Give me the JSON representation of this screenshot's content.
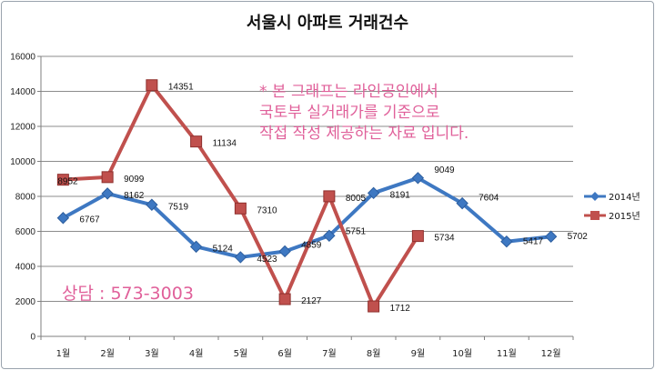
{
  "chart_data": {
    "type": "line",
    "title": "서울시 아파트 거래건수",
    "categories": [
      "1월",
      "2월",
      "3월",
      "4월",
      "5월",
      "6월",
      "7월",
      "8월",
      "9월",
      "10월",
      "11월",
      "12월"
    ],
    "ylim": [
      0,
      16000
    ],
    "yticks": [
      "0",
      "2000",
      "4000",
      "6000",
      "8000",
      "10000",
      "12000",
      "14000",
      "16000"
    ],
    "grid": true,
    "legend_position": "right",
    "series": [
      {
        "name": "2014년",
        "color": "#3e78c2",
        "marker": "diamond",
        "values": [
          6767,
          8162,
          7519,
          5124,
          4523,
          4859,
          5751,
          8191,
          9049,
          7604,
          5417,
          5702
        ]
      },
      {
        "name": "2015년",
        "color": "#c0504d",
        "marker": "square",
        "values": [
          8952,
          9099,
          14351,
          11134,
          7310,
          2127,
          8005,
          1712,
          5734,
          null,
          null,
          null
        ]
      }
    ],
    "annotations": {
      "note_lines": [
        "* 본 그래프는 라인공인에서",
        "국토부 실거래가를 기준으로",
        "작접 작성 제공하는 자료 입니다."
      ],
      "contact": "상담 : 573-3003"
    }
  }
}
